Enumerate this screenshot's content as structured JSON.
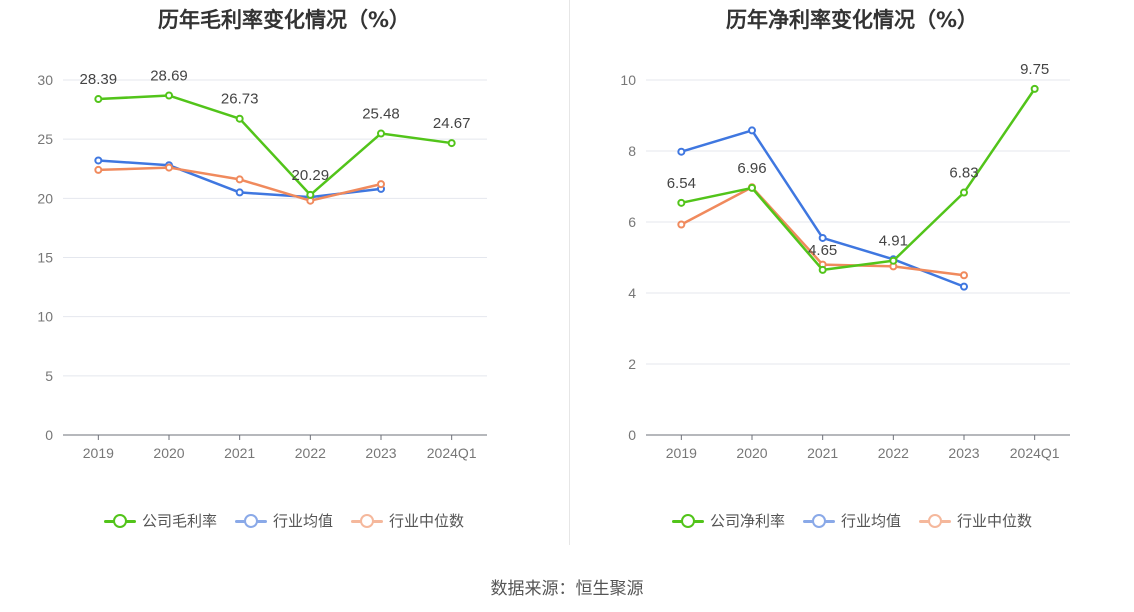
{
  "source_text": "数据来源：恒生聚源",
  "charts": [
    {
      "title": "历年毛利率变化情况（%）",
      "legend": [
        "公司毛利率",
        "行业均值",
        "行业中位数"
      ],
      "chart_data": {
        "type": "line",
        "categories": [
          "2019",
          "2020",
          "2021",
          "2022",
          "2023",
          "2024Q1"
        ],
        "ylim": [
          0,
          30
        ],
        "yticks": [
          0,
          5,
          10,
          15,
          20,
          25,
          30
        ],
        "grid": true,
        "legend_position": "bottom",
        "series": [
          {
            "name": "公司毛利率",
            "color": "#52c41a",
            "values": [
              28.39,
              28.69,
              26.73,
              20.29,
              25.48,
              24.67
            ],
            "labels": [
              "28.39",
              "28.69",
              "26.73",
              "20.29",
              "25.48",
              "24.67"
            ]
          },
          {
            "name": "行业均值",
            "color": "#3f77e0",
            "values": [
              23.2,
              22.8,
              20.5,
              20.1,
              20.8,
              null
            ]
          },
          {
            "name": "行业中位数",
            "color": "#f08a5d",
            "values": [
              22.4,
              22.6,
              21.6,
              19.8,
              21.2,
              null
            ]
          }
        ]
      }
    },
    {
      "title": "历年净利率变化情况（%）",
      "legend": [
        "公司净利率",
        "行业均值",
        "行业中位数"
      ],
      "chart_data": {
        "type": "line",
        "categories": [
          "2019",
          "2020",
          "2021",
          "2022",
          "2023",
          "2024Q1"
        ],
        "ylim": [
          0,
          10
        ],
        "yticks": [
          0,
          2,
          4,
          6,
          8,
          10
        ],
        "grid": true,
        "legend_position": "bottom",
        "series": [
          {
            "name": "公司净利率",
            "color": "#52c41a",
            "values": [
              6.54,
              6.96,
              4.65,
              4.91,
              6.83,
              9.75
            ],
            "labels": [
              "6.54",
              "6.96",
              "4.65",
              "4.91",
              "6.83",
              "9.75"
            ]
          },
          {
            "name": "行业均值",
            "color": "#3f77e0",
            "values": [
              7.98,
              8.58,
              5.55,
              4.95,
              4.18,
              null
            ]
          },
          {
            "name": "行业中位数",
            "color": "#f08a5d",
            "values": [
              5.93,
              6.98,
              4.8,
              4.75,
              4.5,
              null
            ]
          }
        ]
      }
    }
  ]
}
